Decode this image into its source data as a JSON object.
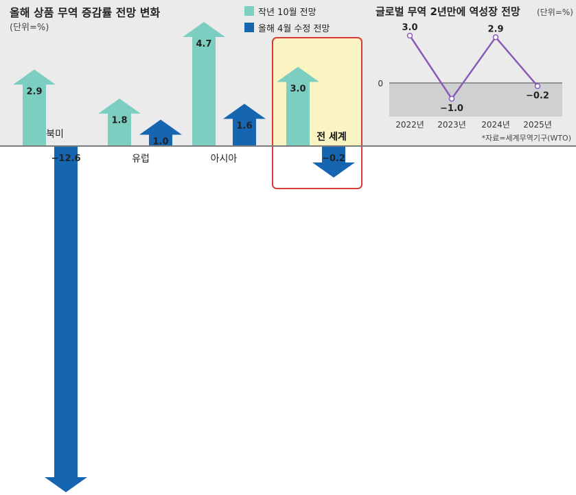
{
  "chart_data": [
    {
      "type": "bar",
      "title": "올해 상품 무역 증감률 전망 변화",
      "unit": "(단위=%)",
      "categories": [
        "북미",
        "유럽",
        "아시아",
        "전 세계"
      ],
      "highlighted_category": "전 세계",
      "ylim": [
        -12.6,
        4.7
      ],
      "series": [
        {
          "name": "작년 10월 전망",
          "color": "#7ccfc0",
          "values": [
            2.9,
            1.8,
            4.7,
            3.0
          ],
          "labels": [
            "2.9",
            "1.8",
            "4.7",
            "3.0"
          ]
        },
        {
          "name": "올해 4월 수정 전망",
          "color": "#1565b0",
          "values": [
            -12.6,
            1.0,
            1.6,
            -0.2
          ],
          "labels": [
            "−12.6",
            "1.0",
            "1.6",
            "−0.2"
          ]
        }
      ]
    },
    {
      "type": "line",
      "title": "글로벌 무역 2년만에 역성장 전망",
      "unit": "(단위=%)",
      "x": [
        "2022년",
        "2023년",
        "2024년",
        "2025년"
      ],
      "series": [
        {
          "color": "#8a5ab8",
          "values": [
            3.0,
            -1.0,
            2.9,
            -0.2
          ],
          "labels": [
            "3.0",
            "−1.0",
            "2.9",
            "−0.2"
          ]
        }
      ],
      "ylim": [
        -2,
        3
      ],
      "zero_line_label": "0",
      "source": "*자료=세계무역기구(WTO)"
    }
  ],
  "colors": {
    "panel_background": "#ebebec",
    "negative_shade": "#cfd0d2",
    "highlight_fill": "#faf4c2",
    "highlight_border": "#d63a3a",
    "axis": "#7a7a7a"
  }
}
